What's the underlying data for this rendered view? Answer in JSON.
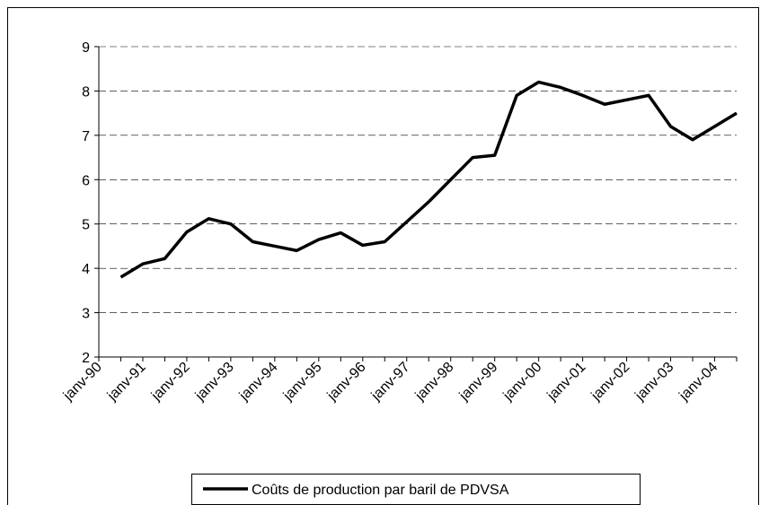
{
  "chart_data": {
    "type": "line",
    "categories": [
      "janv-90",
      null,
      "janv-91",
      null,
      "janv-92",
      null,
      "janv-93",
      null,
      "janv-94",
      null,
      "janv-95",
      null,
      "janv-96",
      null,
      "janv-97",
      null,
      "janv-98",
      null,
      "janv-99",
      null,
      "janv-00",
      null,
      "janv-01",
      null,
      "janv-02",
      null,
      "janv-03",
      null,
      "janv-04",
      null
    ],
    "series": [
      {
        "name": "Coûts de production par baril de PDVSA",
        "color": "#000000",
        "values": [
          null,
          3.8,
          4.1,
          4.22,
          4.82,
          5.12,
          5.0,
          4.6,
          4.5,
          4.4,
          4.65,
          4.8,
          4.52,
          4.6,
          5.05,
          5.5,
          6.0,
          6.5,
          6.55,
          7.9,
          8.2,
          8.08,
          7.9,
          7.7,
          7.8,
          7.9,
          7.2,
          6.9,
          7.2,
          7.5
        ]
      }
    ],
    "ylim": [
      2,
      9
    ],
    "yticks": [
      2,
      3,
      4,
      5,
      6,
      7,
      8,
      9
    ],
    "grid": true,
    "legend": "bottom"
  }
}
